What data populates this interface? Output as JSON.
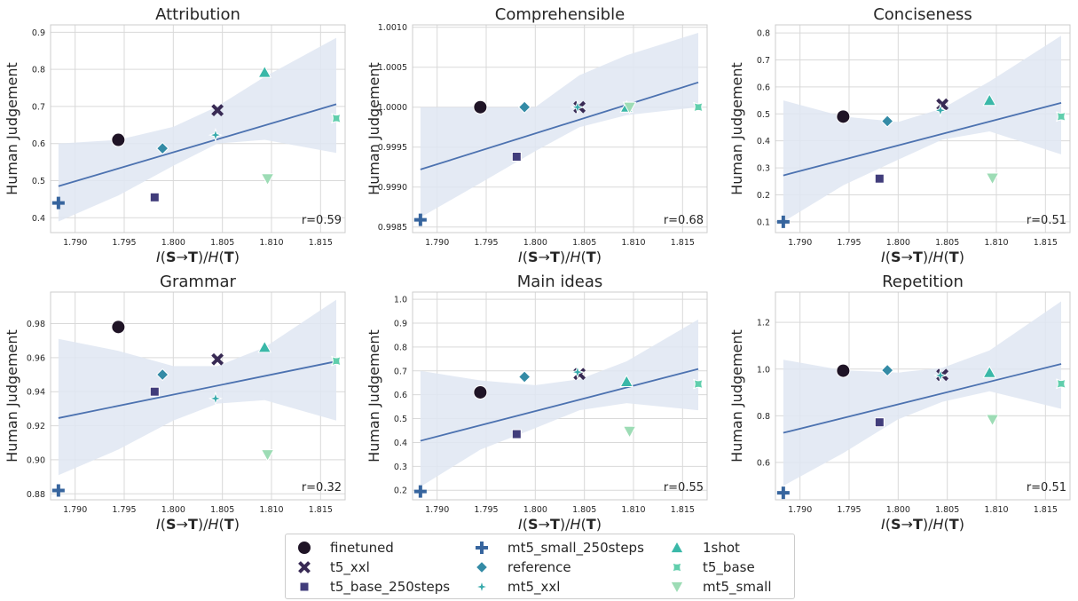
{
  "chart_data": [
    {
      "type": "scatter",
      "title": "Attribution",
      "xlabel_main": "I(S→T)/H(T)",
      "ylabel": "Human Judgement",
      "xlim": [
        1.7875,
        1.8175
      ],
      "ylim": [
        0.36,
        0.92
      ],
      "xticks": [
        "1.790",
        "1.795",
        "1.800",
        "1.805",
        "1.810",
        "1.815"
      ],
      "xtick_values": [
        1.79,
        1.795,
        1.8,
        1.805,
        1.81,
        1.815
      ],
      "yticks": [
        "0.4",
        "0.5",
        "0.6",
        "0.7",
        "0.8",
        "0.9"
      ],
      "ytick_values": [
        0.4,
        0.5,
        0.6,
        0.7,
        0.8,
        0.9
      ],
      "points": [
        {
          "series": "finetuned",
          "x": 1.7944,
          "y": 0.61
        },
        {
          "series": "t5_xxl",
          "x": 1.8045,
          "y": 0.69
        },
        {
          "series": "t5_base_250steps",
          "x": 1.7981,
          "y": 0.455
        },
        {
          "series": "mt5_small_250steps",
          "x": 1.7883,
          "y": 0.44
        },
        {
          "series": "reference",
          "x": 1.7989,
          "y": 0.587
        },
        {
          "series": "mt5_xxl",
          "x": 1.8043,
          "y": 0.623
        },
        {
          "series": "1shot",
          "x": 1.8093,
          "y": 0.792
        },
        {
          "series": "t5_base",
          "x": 1.8166,
          "y": 0.668
        },
        {
          "series": "mt5_small",
          "x": 1.8096,
          "y": 0.505
        }
      ],
      "fit": {
        "x": [
          1.7883,
          1.8166
        ],
        "y": [
          0.485,
          0.706
        ]
      },
      "ci": {
        "x": [
          1.7883,
          1.7944,
          1.8,
          1.8045,
          1.8093,
          1.8166
        ],
        "lower": [
          0.39,
          0.46,
          0.54,
          0.6,
          0.61,
          0.575
        ],
        "upper": [
          0.6,
          0.61,
          0.645,
          0.7,
          0.78,
          0.885
        ]
      },
      "annotation": "r=0.59"
    },
    {
      "type": "scatter",
      "title": "Comprehensible",
      "xlabel_main": "I(S→T)/H(T)",
      "ylabel": "Human Judgement",
      "xlim": [
        1.7875,
        1.8175
      ],
      "ylim": [
        0.99843,
        1.00103
      ],
      "xticks": [
        "1.790",
        "1.795",
        "1.800",
        "1.805",
        "1.810",
        "1.815"
      ],
      "xtick_values": [
        1.79,
        1.795,
        1.8,
        1.805,
        1.81,
        1.815
      ],
      "yticks": [
        "0.9985",
        "0.9990",
        "0.9995",
        "1.0000",
        "1.0005",
        "1.0010"
      ],
      "ytick_values": [
        0.9985,
        0.999,
        0.9995,
        1.0,
        1.0005,
        1.001
      ],
      "points": [
        {
          "series": "finetuned",
          "x": 1.7944,
          "y": 1.0
        },
        {
          "series": "t5_xxl",
          "x": 1.8045,
          "y": 1.0
        },
        {
          "series": "t5_base_250steps",
          "x": 1.7981,
          "y": 0.99938
        },
        {
          "series": "mt5_small_250steps",
          "x": 1.7883,
          "y": 0.99859
        },
        {
          "series": "reference",
          "x": 1.7989,
          "y": 1.0
        },
        {
          "series": "mt5_xxl",
          "x": 1.8043,
          "y": 1.0
        },
        {
          "series": "1shot",
          "x": 1.8093,
          "y": 1.0
        },
        {
          "series": "t5_base",
          "x": 1.8166,
          "y": 1.0
        },
        {
          "series": "mt5_small",
          "x": 1.8096,
          "y": 1.0
        }
      ],
      "fit": {
        "x": [
          1.7883,
          1.8166
        ],
        "y": [
          0.99922,
          1.00031
        ]
      },
      "ci": {
        "x": [
          1.7883,
          1.7944,
          1.8,
          1.8045,
          1.8093,
          1.8166
        ],
        "lower": [
          0.99862,
          0.99905,
          0.99945,
          0.99975,
          0.9999,
          1.0
        ],
        "upper": [
          1.0,
          1.0,
          1.0,
          1.0004,
          1.00065,
          1.00093
        ]
      },
      "annotation": "r=0.68"
    },
    {
      "type": "scatter",
      "title": "Conciseness",
      "xlabel_main": "I(S→T)/H(T)",
      "ylabel": "Human Judgement",
      "xlim": [
        1.7875,
        1.8175
      ],
      "ylim": [
        0.06,
        0.83
      ],
      "xticks": [
        "1.790",
        "1.795",
        "1.800",
        "1.805",
        "1.810",
        "1.815"
      ],
      "xtick_values": [
        1.79,
        1.795,
        1.8,
        1.805,
        1.81,
        1.815
      ],
      "yticks": [
        "0.1",
        "0.2",
        "0.3",
        "0.4",
        "0.5",
        "0.6",
        "0.7",
        "0.8"
      ],
      "ytick_values": [
        0.1,
        0.2,
        0.3,
        0.4,
        0.5,
        0.6,
        0.7,
        0.8
      ],
      "points": [
        {
          "series": "finetuned",
          "x": 1.7944,
          "y": 0.49
        },
        {
          "series": "t5_xxl",
          "x": 1.8045,
          "y": 0.535
        },
        {
          "series": "t5_base_250steps",
          "x": 1.7981,
          "y": 0.26
        },
        {
          "series": "mt5_small_250steps",
          "x": 1.7883,
          "y": 0.1
        },
        {
          "series": "reference",
          "x": 1.7989,
          "y": 0.473
        },
        {
          "series": "mt5_xxl",
          "x": 1.8043,
          "y": 0.513
        },
        {
          "series": "1shot",
          "x": 1.8093,
          "y": 0.55
        },
        {
          "series": "t5_base",
          "x": 1.8166,
          "y": 0.49
        },
        {
          "series": "mt5_small",
          "x": 1.8096,
          "y": 0.262
        }
      ],
      "fit": {
        "x": [
          1.7883,
          1.8166
        ],
        "y": [
          0.272,
          0.541
        ]
      },
      "ci": {
        "x": [
          1.7883,
          1.7944,
          1.8,
          1.8045,
          1.8093,
          1.8166
        ],
        "lower": [
          0.1,
          0.235,
          0.33,
          0.405,
          0.435,
          0.35
        ],
        "upper": [
          0.55,
          0.49,
          0.47,
          0.52,
          0.62,
          0.79
        ]
      },
      "annotation": "r=0.51"
    },
    {
      "type": "scatter",
      "title": "Grammar",
      "xlabel_main": "I(S→T)/H(T)",
      "ylabel": "Human Judgement",
      "xlim": [
        1.7875,
        1.8175
      ],
      "ylim": [
        0.8765,
        0.9985
      ],
      "xticks": [
        "1.790",
        "1.795",
        "1.800",
        "1.805",
        "1.810",
        "1.815"
      ],
      "xtick_values": [
        1.79,
        1.795,
        1.8,
        1.805,
        1.81,
        1.815
      ],
      "yticks": [
        "0.88",
        "0.90",
        "0.92",
        "0.94",
        "0.96",
        "0.98"
      ],
      "ytick_values": [
        0.88,
        0.9,
        0.92,
        0.94,
        0.96,
        0.98
      ],
      "points": [
        {
          "series": "finetuned",
          "x": 1.7944,
          "y": 0.978
        },
        {
          "series": "t5_xxl",
          "x": 1.8045,
          "y": 0.959
        },
        {
          "series": "t5_base_250steps",
          "x": 1.7981,
          "y": 0.94
        },
        {
          "series": "mt5_small_250steps",
          "x": 1.7883,
          "y": 0.882
        },
        {
          "series": "reference",
          "x": 1.7989,
          "y": 0.95
        },
        {
          "series": "mt5_xxl",
          "x": 1.8043,
          "y": 0.936
        },
        {
          "series": "1shot",
          "x": 1.8093,
          "y": 0.966
        },
        {
          "series": "t5_base",
          "x": 1.8166,
          "y": 0.958
        },
        {
          "series": "mt5_small",
          "x": 1.8096,
          "y": 0.903
        }
      ],
      "fit": {
        "x": [
          1.7883,
          1.8166
        ],
        "y": [
          0.9245,
          0.9578
        ]
      },
      "ci": {
        "x": [
          1.7883,
          1.7944,
          1.8,
          1.8045,
          1.8093,
          1.8166
        ],
        "lower": [
          0.891,
          0.906,
          0.923,
          0.933,
          0.935,
          0.923
        ],
        "upper": [
          0.971,
          0.964,
          0.955,
          0.955,
          0.966,
          0.994
        ]
      },
      "annotation": "r=0.32"
    },
    {
      "type": "scatter",
      "title": "Main ideas",
      "xlabel_main": "I(S→T)/H(T)",
      "ylabel": "Human Judgement",
      "xlim": [
        1.7875,
        1.8175
      ],
      "ylim": [
        0.16,
        1.03
      ],
      "xticks": [
        "1.790",
        "1.795",
        "1.800",
        "1.805",
        "1.810",
        "1.815"
      ],
      "xtick_values": [
        1.79,
        1.795,
        1.8,
        1.805,
        1.81,
        1.815
      ],
      "yticks": [
        "0.2",
        "0.3",
        "0.4",
        "0.5",
        "0.6",
        "0.7",
        "0.8",
        "0.9",
        "1.0"
      ],
      "ytick_values": [
        0.2,
        0.3,
        0.4,
        0.5,
        0.6,
        0.7,
        0.8,
        0.9,
        1.0
      ],
      "points": [
        {
          "series": "finetuned",
          "x": 1.7944,
          "y": 0.61
        },
        {
          "series": "t5_xxl",
          "x": 1.8045,
          "y": 0.687
        },
        {
          "series": "t5_base_250steps",
          "x": 1.7981,
          "y": 0.435
        },
        {
          "series": "mt5_small_250steps",
          "x": 1.7883,
          "y": 0.195
        },
        {
          "series": "reference",
          "x": 1.7989,
          "y": 0.675
        },
        {
          "series": "mt5_xxl",
          "x": 1.8043,
          "y": 0.695
        },
        {
          "series": "1shot",
          "x": 1.8093,
          "y": 0.655
        },
        {
          "series": "t5_base",
          "x": 1.8166,
          "y": 0.645
        },
        {
          "series": "mt5_small",
          "x": 1.8096,
          "y": 0.447
        }
      ],
      "fit": {
        "x": [
          1.7883,
          1.8166
        ],
        "y": [
          0.407,
          0.708
        ]
      },
      "ci": {
        "x": [
          1.7883,
          1.7944,
          1.8,
          1.8045,
          1.8093,
          1.8166
        ],
        "lower": [
          0.215,
          0.37,
          0.46,
          0.535,
          0.565,
          0.535
        ],
        "upper": [
          0.7,
          0.66,
          0.64,
          0.665,
          0.74,
          0.915
        ]
      },
      "annotation": "r=0.55"
    },
    {
      "type": "scatter",
      "title": "Repetition",
      "xlabel_main": "I(S→T)/H(T)",
      "ylabel": "Human Judgement",
      "xlim": [
        1.7875,
        1.8175
      ],
      "ylim": [
        0.44,
        1.33
      ],
      "xticks": [
        "1.790",
        "1.795",
        "1.800",
        "1.805",
        "1.810",
        "1.815"
      ],
      "xtick_values": [
        1.79,
        1.795,
        1.8,
        1.805,
        1.81,
        1.815
      ],
      "yticks": [
        "0.6",
        "0.8",
        "1.0",
        "1.2"
      ],
      "ytick_values": [
        0.6,
        0.8,
        1.0,
        1.2
      ],
      "points": [
        {
          "series": "finetuned",
          "x": 1.7944,
          "y": 0.993
        },
        {
          "series": "t5_xxl",
          "x": 1.8045,
          "y": 0.975
        },
        {
          "series": "t5_base_250steps",
          "x": 1.7981,
          "y": 0.772
        },
        {
          "series": "mt5_small_250steps",
          "x": 1.7883,
          "y": 0.47
        },
        {
          "series": "reference",
          "x": 1.7989,
          "y": 0.995
        },
        {
          "series": "mt5_xxl",
          "x": 1.8043,
          "y": 0.973
        },
        {
          "series": "1shot",
          "x": 1.8093,
          "y": 0.985
        },
        {
          "series": "t5_base",
          "x": 1.8166,
          "y": 0.937
        },
        {
          "series": "mt5_small",
          "x": 1.8096,
          "y": 0.784
        }
      ],
      "fit": {
        "x": [
          1.7883,
          1.8166
        ],
        "y": [
          0.727,
          1.022
        ]
      },
      "ci": {
        "x": [
          1.7883,
          1.7944,
          1.8,
          1.8045,
          1.8093,
          1.8166
        ],
        "lower": [
          0.5,
          0.64,
          0.785,
          0.86,
          0.905,
          0.83
        ],
        "upper": [
          1.04,
          0.995,
          0.985,
          1.005,
          1.08,
          1.29
        ]
      },
      "annotation": "r=0.51"
    }
  ],
  "legend": {
    "placement": "bottom-center",
    "items": [
      {
        "key": "finetuned",
        "label": "finetuned",
        "marker": "circle",
        "color": "#1f1426"
      },
      {
        "key": "t5_xxl",
        "label": "t5_xxl",
        "marker": "x",
        "color": "#382a54"
      },
      {
        "key": "t5_base_250steps",
        "label": "t5_base_250steps",
        "marker": "square",
        "color": "#413d7b"
      },
      {
        "key": "mt5_small_250steps",
        "label": "mt5_small_250steps",
        "marker": "plus",
        "color": "#37659e"
      },
      {
        "key": "reference",
        "label": "reference",
        "marker": "diamond",
        "color": "#348ba6"
      },
      {
        "key": "mt5_xxl",
        "label": "mt5_xxl",
        "marker": "star4",
        "color": "#38aaac"
      },
      {
        "key": "1shot",
        "label": "1shot",
        "marker": "triangle-up",
        "color": "#3ab8a8"
      },
      {
        "key": "t5_base",
        "label": "t5_base",
        "marker": "pinched-x",
        "color": "#60ceac"
      },
      {
        "key": "mt5_small",
        "label": "mt5_small",
        "marker": "triangle-down",
        "color": "#9ddcb5"
      }
    ]
  },
  "colors": {
    "fit_line": "#4c72b0",
    "ci_band": "#dfe6f2",
    "grid": "#d9d9d9",
    "axis_frame": "#cccccc",
    "text": "#262626"
  },
  "grid": true
}
